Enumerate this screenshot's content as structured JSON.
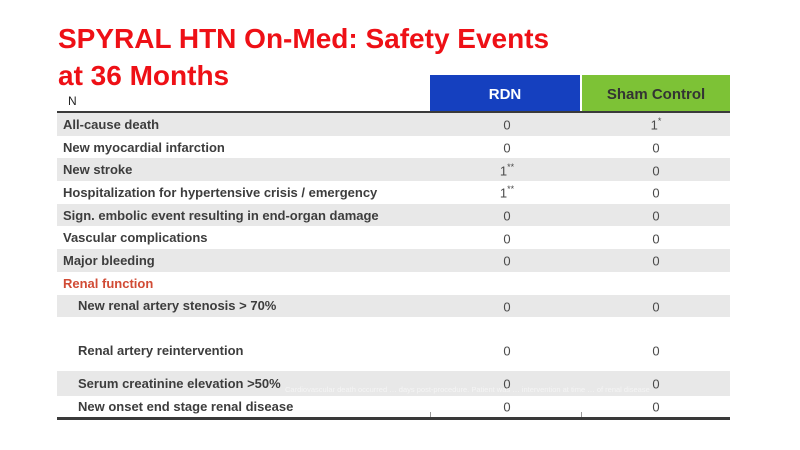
{
  "title": {
    "line1": "SPYRAL HTN On-Med: Safety Events",
    "line2": "at 36 Months"
  },
  "table": {
    "n_label": "N",
    "columns": [
      {
        "label": "RDN",
        "bg": "#1540bf",
        "fg": "#ffffff"
      },
      {
        "label": "Sham Control",
        "bg": "#7dc236",
        "fg": "#333333"
      }
    ],
    "rows": [
      {
        "label": "All-cause death",
        "rdn": "0",
        "rdn_sup": "",
        "sham": "1",
        "sham_sup": "*",
        "shaded": true,
        "indent": false,
        "section": false
      },
      {
        "label": "New myocardial infarction",
        "rdn": "0",
        "rdn_sup": "",
        "sham": "0",
        "sham_sup": "",
        "shaded": false,
        "indent": false,
        "section": false
      },
      {
        "label": "New stroke",
        "rdn": "1",
        "rdn_sup": "**",
        "sham": "0",
        "sham_sup": "",
        "shaded": true,
        "indent": false,
        "section": false
      },
      {
        "label": "Hospitalization for hypertensive crisis / emergency",
        "rdn": "1",
        "rdn_sup": "**",
        "sham": "0",
        "sham_sup": "",
        "shaded": false,
        "indent": false,
        "section": false
      },
      {
        "label": "Sign. embolic event resulting in end-organ damage",
        "rdn": "0",
        "rdn_sup": "",
        "sham": "0",
        "sham_sup": "",
        "shaded": true,
        "indent": false,
        "section": false
      },
      {
        "label": "Vascular complications",
        "rdn": "0",
        "rdn_sup": "",
        "sham": "0",
        "sham_sup": "",
        "shaded": false,
        "indent": false,
        "section": false
      },
      {
        "label": "Major bleeding",
        "rdn": "0",
        "rdn_sup": "",
        "sham": "0",
        "sham_sup": "",
        "shaded": true,
        "indent": false,
        "section": false
      },
      {
        "label": "Renal function",
        "shaded": false,
        "indent": false,
        "section": true
      },
      {
        "label": "New renal artery stenosis > 70%",
        "rdn": "0",
        "rdn_sup": "",
        "sham": "0",
        "sham_sup": "",
        "shaded": true,
        "indent": true,
        "section": false
      },
      {
        "label": "Renal artery reintervention",
        "rdn": "0",
        "rdn_sup": "",
        "sham": "0",
        "sham_sup": "",
        "shaded": false,
        "indent": true,
        "section": false,
        "gap": "lg"
      },
      {
        "label": "Serum creatinine elevation >50%",
        "rdn": "0",
        "rdn_sup": "",
        "sham": "0",
        "sham_sup": "",
        "shaded": true,
        "indent": true,
        "section": false,
        "gap": "sm",
        "size": "tall"
      },
      {
        "label": "New onset end stage renal disease",
        "rdn": "0",
        "rdn_sup": "",
        "sham": "0",
        "sham_sup": "",
        "shaded": false,
        "indent": true,
        "section": false,
        "size": "short"
      }
    ],
    "footnote_faint": "Cardiovascular death occurred … days post-procedure. Patient was … intervention at time … of renal disease"
  },
  "colors": {
    "title_red": "#ee1016",
    "section_red": "#d14b35",
    "rdn_header_blue": "#1540bf",
    "sham_header_green": "#7dc236",
    "row_shaded_gray": "#e8e8e8",
    "table_border_dark": "#3a3a3a",
    "label_text": "#3d3d3d"
  }
}
